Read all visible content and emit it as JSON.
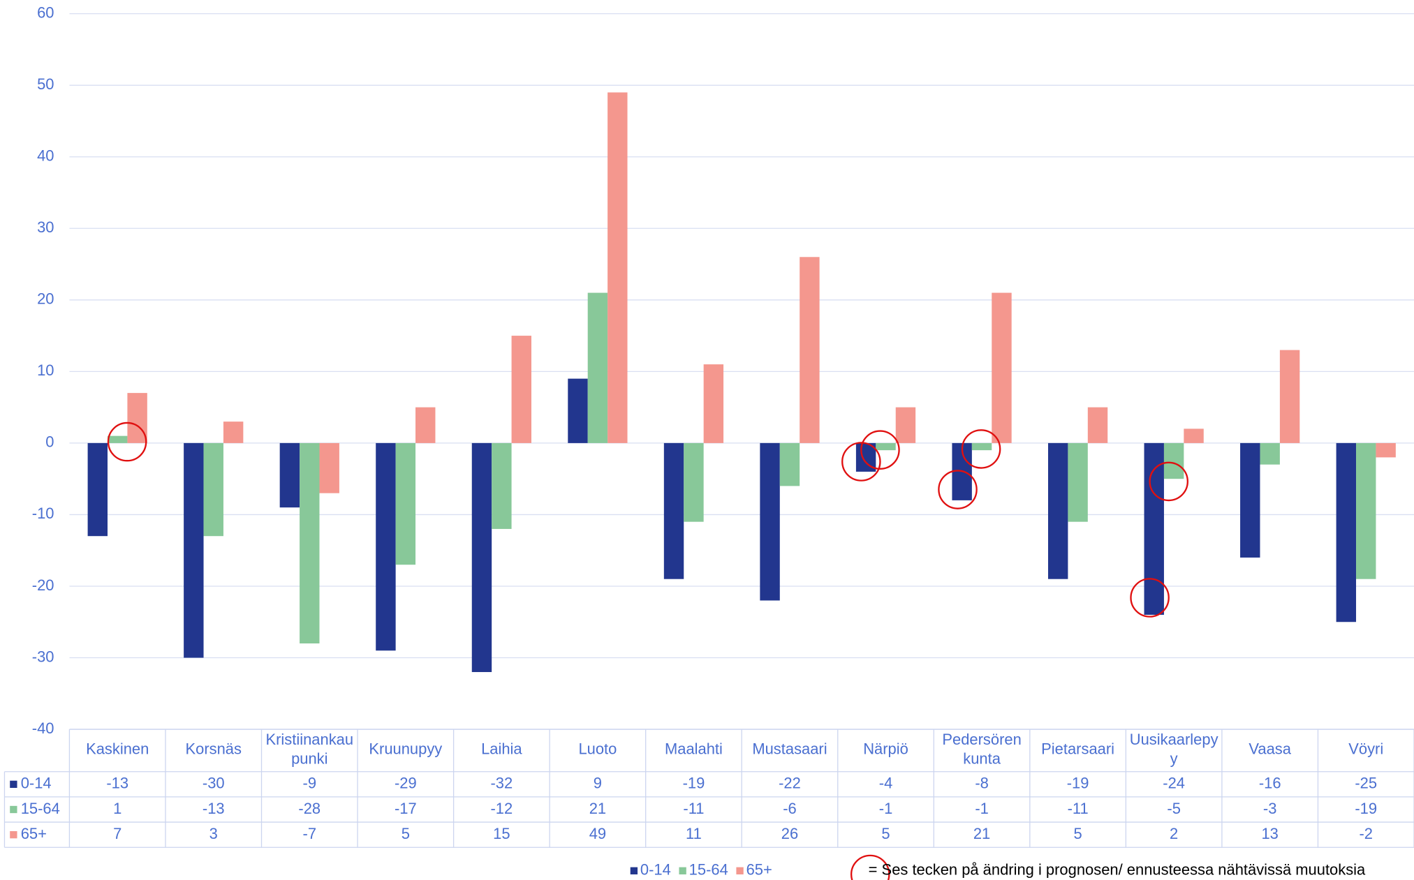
{
  "chart_data": {
    "type": "bar",
    "categories": [
      "Kaskinen",
      "Korsnäs",
      "Kristiinankaupunki",
      "Kruunupyy",
      "Laihia",
      "Luoto",
      "Maalahti",
      "Mustasaari",
      "Närpiö",
      "Pedersören kunta",
      "Pietarsaari",
      "Uusikaarlepyy",
      "Vaasa",
      "Vöyri"
    ],
    "series": [
      {
        "name": "0-14",
        "color": "#22368e",
        "values": [
          -13,
          -30,
          -9,
          -29,
          -32,
          9,
          -19,
          -22,
          -4,
          -8,
          -19,
          -24,
          -16,
          -25
        ]
      },
      {
        "name": "15-64",
        "color": "#88c899",
        "values": [
          1,
          -13,
          -28,
          -17,
          -12,
          21,
          -11,
          -6,
          -1,
          -1,
          -11,
          -5,
          -3,
          -19
        ]
      },
      {
        "name": "65+",
        "color": "#f4978e",
        "values": [
          7,
          3,
          -7,
          5,
          15,
          49,
          11,
          26,
          5,
          21,
          5,
          2,
          13,
          -2
        ]
      }
    ],
    "ylim": [
      -40,
      60
    ],
    "yticks": [
      -40,
      -30,
      -20,
      -10,
      0,
      10,
      20,
      30,
      40,
      50,
      60
    ],
    "grid": true,
    "annotation": "= Ses tecken på ändring i prognosen/ ennusteessa nähtävissä muutoksia"
  }
}
